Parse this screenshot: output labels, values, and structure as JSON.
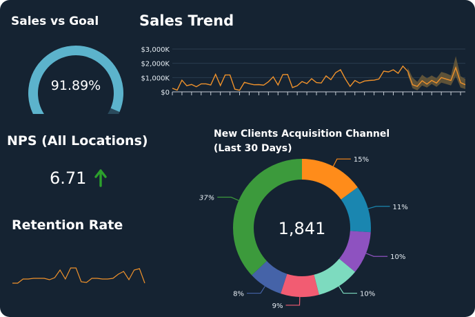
{
  "widgets": {
    "sales_vs_goal": {
      "title": "Sales vs Goal",
      "value_label": "91.89%",
      "fraction": 0.9189
    },
    "sales_trend": {
      "title": "Sales Trend"
    },
    "nps": {
      "title": "NPS (All Locations)",
      "value": "6.71",
      "trend_icon": "arrow-up-icon"
    },
    "retention": {
      "title": "Retention Rate"
    },
    "acquisition": {
      "title_line1": "New Clients Acquisition Channel",
      "title_line2": "(Last 30 Days)",
      "total": "1,841"
    }
  },
  "colors": {
    "background": "#152332",
    "gauge_fill": "#5cb3cc",
    "gauge_track": "#2a4a5c",
    "line": "#f0922b",
    "band": "#6b5a3a",
    "positive": "#2ca02c"
  },
  "chart_data": [
    {
      "type": "line",
      "title": "Sales Trend",
      "ylim": [
        0,
        3000
      ],
      "yticks": [
        0,
        1000,
        2000,
        3000
      ],
      "ytick_labels": [
        "$0",
        "$1,000K",
        "$2,000K",
        "$3,000K"
      ],
      "grid": true,
      "values": [
        250,
        120,
        820,
        430,
        520,
        360,
        560,
        560,
        480,
        1230,
        440,
        1180,
        1180,
        190,
        110,
        670,
        570,
        500,
        510,
        470,
        700,
        1050,
        480,
        1210,
        1220,
        300,
        430,
        720,
        580,
        920,
        650,
        620,
        1120,
        850,
        1350,
        1550,
        920,
        380,
        800,
        610,
        760,
        800,
        820,
        900,
        1450,
        1400,
        1550,
        1300,
        1800,
        1440,
        500,
        380,
        780,
        540,
        800,
        620,
        1000,
        900,
        800,
        1700,
        650,
        500
      ],
      "forecast_band": {
        "start_index": 49,
        "lower": [
          1200,
          250,
          100,
          450,
          300,
          550,
          350,
          650,
          550,
          450,
          1100,
          300,
          200
        ],
        "upper": [
          1700,
          1000,
          700,
          1200,
          950,
          1150,
          950,
          1400,
          1300,
          1150,
          2500,
          1100,
          900
        ]
      }
    },
    {
      "type": "line",
      "title": "Retention Rate",
      "values": [
        3,
        3,
        9,
        9,
        10,
        10,
        10,
        8,
        11,
        22,
        9,
        25,
        25,
        5,
        4,
        10,
        10,
        9,
        9,
        10,
        16,
        20,
        8,
        22,
        24,
        3
      ]
    },
    {
      "type": "pie",
      "title": "New Clients Acquisition Channel (Last 30 Days)",
      "center_label": "1,841",
      "slices": [
        {
          "value": 15,
          "label": "15%",
          "color": "#ff8c1a"
        },
        {
          "value": 11,
          "label": "11%",
          "color": "#1a86b0"
        },
        {
          "value": 10,
          "label": "10%",
          "color": "#8e52c0"
        },
        {
          "value": 10,
          "label": "10%",
          "color": "#7ddbbf"
        },
        {
          "value": 9,
          "label": "9%",
          "color": "#f25c72"
        },
        {
          "value": 8,
          "label": "8%",
          "color": "#4563a8"
        },
        {
          "value": 37,
          "label": "37%",
          "color": "#3c9a3c"
        }
      ]
    }
  ]
}
